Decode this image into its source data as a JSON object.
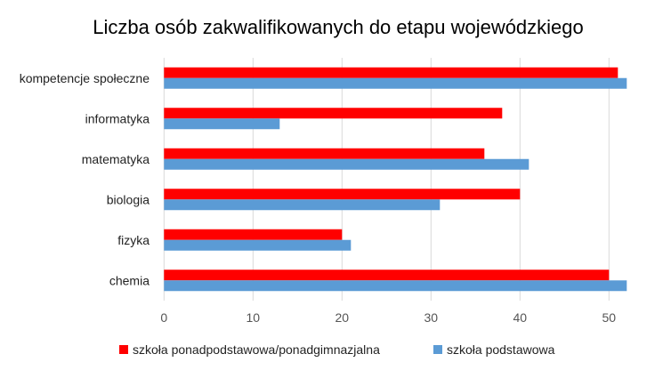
{
  "chart_data": {
    "type": "bar",
    "orientation": "horizontal",
    "title": "Liczba osób zakwalifikowanych do etapu wojewódzkiego",
    "xlabel": "",
    "ylabel": "",
    "categories": [
      "kompetencje społeczne",
      "informatyka",
      "matematyka",
      "biologia",
      "fizyka",
      "chemia"
    ],
    "series": [
      {
        "name": "szkoła ponadpodstawowa/ponadgimnazjalna",
        "color": "#FF0000",
        "values": [
          51,
          38,
          36,
          40,
          20,
          50
        ]
      },
      {
        "name": "szkoła podstawowa",
        "color": "#5B9BD5",
        "values": [
          52,
          13,
          41,
          31,
          21,
          52
        ]
      }
    ],
    "xlim": [
      0,
      52
    ],
    "xticks": [
      "0",
      "10",
      "20",
      "30",
      "40",
      "50"
    ],
    "grid": true,
    "legend_position": "bottom"
  }
}
